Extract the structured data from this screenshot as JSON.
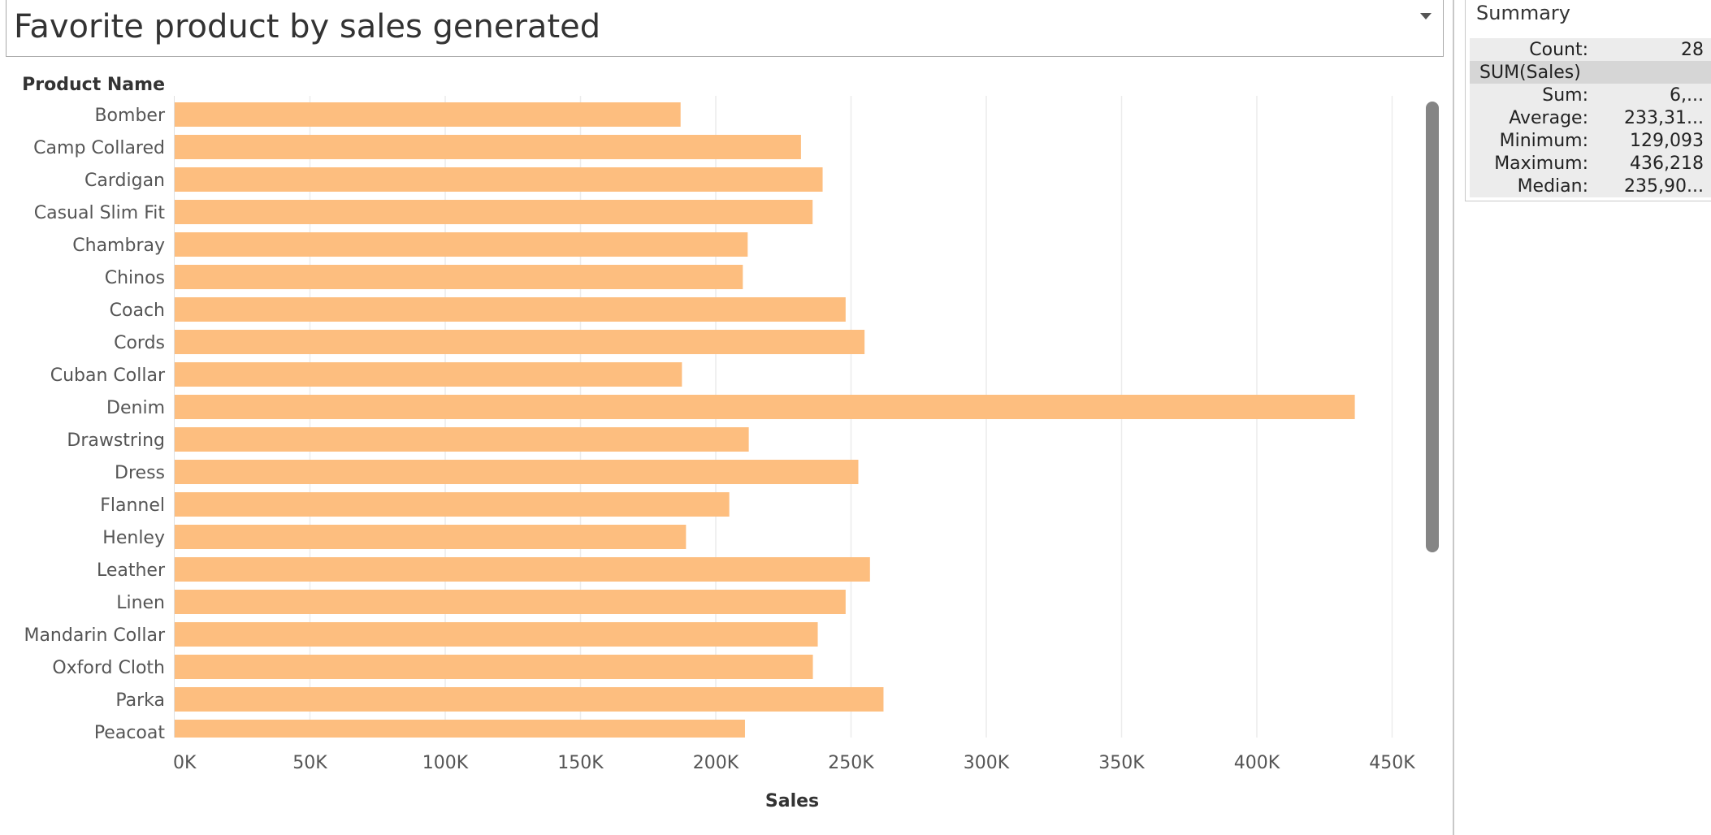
{
  "title": "Favorite product by sales generated",
  "chart_data": {
    "type": "bar",
    "orientation": "horizontal",
    "ylabel": "Product Name",
    "xlabel": "Sales",
    "xlim": [
      0,
      470000
    ],
    "x_ticks": [
      0,
      50000,
      100000,
      150000,
      200000,
      250000,
      300000,
      350000,
      400000,
      450000
    ],
    "x_tick_labels": [
      "0K",
      "50K",
      "100K",
      "150K",
      "200K",
      "250K",
      "300K",
      "350K",
      "400K",
      "450K"
    ],
    "grid": true,
    "color": "#fdbe7f",
    "categories": [
      "Bomber",
      "Camp Collared",
      "Cardigan",
      "Casual Slim Fit",
      "Chambray",
      "Chinos",
      "Coach",
      "Cords",
      "Cuban Collar",
      "Denim",
      "Drawstring",
      "Dress",
      "Flannel",
      "Henley",
      "Leather",
      "Linen",
      "Mandarin Collar",
      "Oxford Cloth",
      "Parka",
      "Peacoat"
    ],
    "values": [
      187000,
      231500,
      239500,
      235800,
      211800,
      210000,
      248000,
      255000,
      187500,
      436218,
      212200,
      252700,
      205000,
      189000,
      257000,
      248000,
      237700,
      235900,
      262000,
      210800
    ]
  },
  "summary": {
    "title": "Summary",
    "count_label": "Count:",
    "count_value": "28",
    "field": "SUM(Sales)",
    "rows": [
      {
        "label": "Sum:",
        "value": "6,..."
      },
      {
        "label": "Average:",
        "value": "233,31..."
      },
      {
        "label": "Minimum:",
        "value": "129,093"
      },
      {
        "label": "Maximum:",
        "value": "436,218"
      },
      {
        "label": "Median:",
        "value": "235,90..."
      }
    ]
  }
}
